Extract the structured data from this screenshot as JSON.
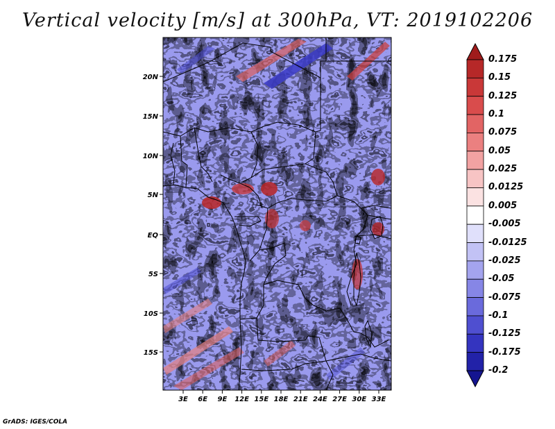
{
  "title": "Vertical velocity [m/s] at 300hPa, VT: 2019102206",
  "footer": "GrADS: IGES/COLA",
  "lat_labels": [
    "20N",
    "15N",
    "10N",
    "5N",
    "EQ",
    "5S",
    "10S",
    "15S"
  ],
  "lon_labels": [
    "3E",
    "6E",
    "9E",
    "12E",
    "15E",
    "18E",
    "21E",
    "24E",
    "27E",
    "30E",
    "33E"
  ],
  "colorbar": {
    "levels": [
      "0.175",
      "0.15",
      "0.125",
      "0.1",
      "0.075",
      "0.05",
      "0.025",
      "0.0125",
      "0.005",
      "-0.005",
      "-0.0125",
      "-0.025",
      "-0.05",
      "-0.075",
      "-0.1",
      "-0.125",
      "-0.175",
      "-0.2"
    ],
    "colors": [
      "#a01c1c",
      "#b62828",
      "#c93838",
      "#d94c4c",
      "#e26464",
      "#eb8080",
      "#f2a2a2",
      "#f7c4c4",
      "#fbe2e2",
      "#ffffff",
      "#e0e0fb",
      "#c2c2f5",
      "#a4a4ee",
      "#8686e6",
      "#6a6adc",
      "#4f4fd0",
      "#3434bf",
      "#2222a8",
      "#151590"
    ]
  },
  "map": {
    "lon_range": [
      0,
      35
    ],
    "lat_range": [
      -19,
      25
    ]
  }
}
